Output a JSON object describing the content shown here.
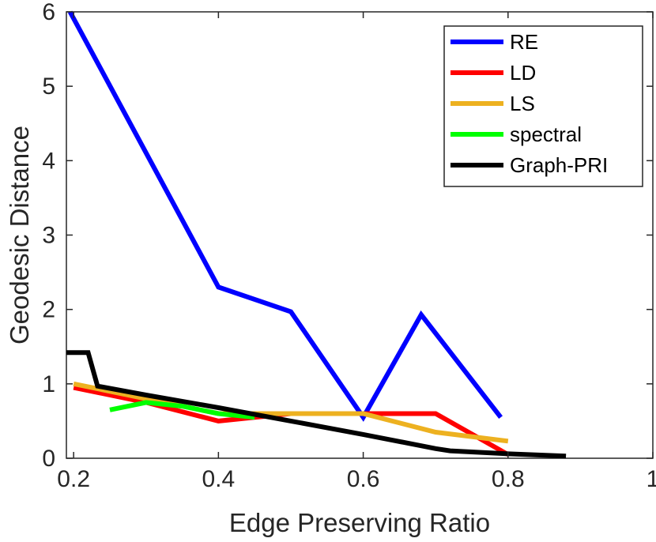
{
  "chart_data": {
    "type": "line",
    "title": "",
    "xlabel": "Edge Preserving Ratio",
    "ylabel": "Geodesic Distance",
    "xlim": [
      0.19,
      1.0
    ],
    "ylim": [
      0,
      6
    ],
    "xticks": [
      0.2,
      0.4,
      0.6,
      0.8,
      1
    ],
    "xtick_labels": [
      "0.2",
      "0.4",
      "0.6",
      "0.8",
      "1"
    ],
    "yticks": [
      0,
      1,
      2,
      3,
      4,
      5,
      6
    ],
    "ytick_labels": [
      "0",
      "1",
      "2",
      "3",
      "4",
      "5",
      "6"
    ],
    "grid": false,
    "legend_position": "top-right",
    "series": [
      {
        "name": "RE",
        "color": "#0000ff",
        "x": [
          0.195,
          0.4,
          0.5,
          0.6,
          0.68,
          0.79
        ],
        "y": [
          6.0,
          2.3,
          1.97,
          0.55,
          1.93,
          0.55
        ]
      },
      {
        "name": "LD",
        "color": "#ff0000",
        "x": [
          0.2,
          0.3,
          0.4,
          0.5,
          0.6,
          0.7,
          0.8
        ],
        "y": [
          0.95,
          0.75,
          0.5,
          0.6,
          0.6,
          0.6,
          0.05
        ]
      },
      {
        "name": "LS",
        "color": "#edb120",
        "x": [
          0.2,
          0.3,
          0.4,
          0.5,
          0.6,
          0.7,
          0.8
        ],
        "y": [
          1.0,
          0.8,
          0.6,
          0.6,
          0.6,
          0.35,
          0.23
        ]
      },
      {
        "name": "spectral",
        "color": "#00ff00",
        "x": [
          0.25,
          0.3,
          0.35,
          0.4,
          0.45
        ],
        "y": [
          0.65,
          0.75,
          0.7,
          0.6,
          0.55
        ]
      },
      {
        "name": "Graph-PRI",
        "color": "#000000",
        "x": [
          0.19,
          0.22,
          0.233,
          0.3,
          0.4,
          0.5,
          0.6,
          0.7,
          0.72,
          0.8,
          0.88
        ],
        "y": [
          1.42,
          1.42,
          0.97,
          0.85,
          0.68,
          0.5,
          0.32,
          0.13,
          0.1,
          0.06,
          0.03
        ]
      }
    ]
  }
}
